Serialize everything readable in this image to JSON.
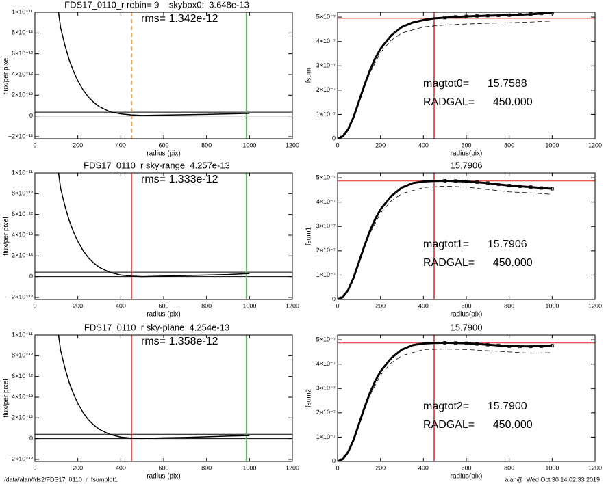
{
  "chart_data": [
    {
      "type": "line",
      "title": "FDS17_0110_r rebin= 9    skybox0:  3.648e-13",
      "xlabel": "radius (pix)",
      "ylabel": "flux/per pixel",
      "annotations": [
        "rms= 1.342e-12"
      ],
      "xlim": [
        0,
        1200
      ],
      "xticks": [
        0,
        200,
        400,
        600,
        800,
        1000,
        1200
      ],
      "ylim": [
        -2.2e-12,
        1e-11
      ],
      "yticks": [
        {
          "value": -2e-12,
          "label": "−2×10⁻¹²"
        },
        0,
        {
          "value": 2e-12,
          "label": "2×10⁻¹²"
        },
        {
          "value": 4e-12,
          "label": "4×10⁻¹²"
        },
        {
          "value": 6e-12,
          "label": "6×10⁻¹²"
        },
        {
          "value": 8e-12,
          "label": "8×10⁻¹²"
        },
        {
          "value": 1e-11,
          "label": "1×10⁻¹¹"
        }
      ],
      "series": [
        {
          "style": "solid",
          "color": "#000000",
          "x": [
            110,
            120,
            140,
            160,
            180,
            200,
            225,
            250,
            275,
            300,
            350,
            400,
            450,
            500,
            600,
            700,
            800,
            900,
            1000
          ],
          "values": [
            1e-11,
            8.5e-12,
            6.8e-12,
            5.4e-12,
            4.3e-12,
            3.4e-12,
            2.5e-12,
            1.8e-12,
            1.3e-12,
            9e-13,
            4e-13,
            2e-13,
            1e-13,
            5e-14,
            8e-14,
            1.2e-13,
            1.5e-13,
            2e-13,
            2.5e-13
          ]
        }
      ],
      "hlines": [
        {
          "value": 3.648e-13,
          "color": "#000000"
        },
        {
          "value": 0,
          "color": "#000000"
        }
      ],
      "vlines": [
        {
          "value": 450,
          "color": "#e8862a",
          "dash": true
        },
        {
          "value": 985,
          "color": "#33dd33"
        }
      ]
    },
    {
      "type": "line",
      "xlabel": "radius(pix)",
      "ylabel": "fsum",
      "annotations": [
        "magtot0=      15.7588",
        "RADGAL=      450.000"
      ],
      "xlim": [
        0,
        1200
      ],
      "xticks": [
        0,
        200,
        400,
        600,
        800,
        1000,
        1200
      ],
      "ylim": [
        0,
        5.2e-07
      ],
      "yticks": [
        0,
        {
          "value": 1e-07,
          "label": "1×10⁻⁷"
        },
        {
          "value": 2e-07,
          "label": "2×10⁻⁷"
        },
        {
          "value": 3e-07,
          "label": "3×10⁻⁷"
        },
        {
          "value": 4e-07,
          "label": "4×10⁻⁷"
        },
        {
          "value": 5e-07,
          "label": "5×10⁻⁷"
        }
      ],
      "series": [
        {
          "style": "solid",
          "color": "#000000",
          "x": [
            0,
            25,
            50,
            75,
            100,
            125,
            150,
            175,
            200,
            250,
            300,
            350,
            400,
            450,
            500,
            600,
            700,
            800,
            900,
            1000
          ],
          "values": [
            0,
            1e-08,
            4e-08,
            9e-08,
            1.55e-07,
            2.2e-07,
            2.8e-07,
            3.3e-07,
            3.7e-07,
            4.25e-07,
            4.6e-07,
            4.78e-07,
            4.88e-07,
            4.95e-07,
            4.98e-07,
            5.03e-07,
            5.06e-07,
            5.08e-07,
            5.12e-07,
            5.18e-07
          ]
        },
        {
          "style": "dashed",
          "color": "#000000",
          "x": [
            0,
            50,
            100,
            150,
            200,
            250,
            300,
            400,
            500,
            600,
            700,
            800,
            900,
            1000
          ],
          "values": [
            0,
            3.8e-08,
            1.5e-07,
            2.7e-07,
            3.55e-07,
            4.05e-07,
            4.35e-07,
            4.6e-07,
            4.68e-07,
            4.72e-07,
            4.75e-07,
            4.77e-07,
            4.8e-07,
            4.84e-07
          ]
        },
        {
          "style": "square",
          "color": "#000000",
          "x": [
            500,
            550,
            600,
            650,
            700,
            750,
            800,
            850,
            900,
            950,
            1000
          ],
          "values": [
            4.98e-07,
            5.01e-07,
            5.03e-07,
            5.05e-07,
            5.06e-07,
            5.07e-07,
            5.08e-07,
            5.1e-07,
            5.12e-07,
            5.15e-07,
            5.18e-07
          ]
        }
      ],
      "hlines": [
        {
          "value": 4.95e-07,
          "color": "#dd2222"
        }
      ],
      "vlines": [
        {
          "value": 450,
          "color": "#dd2222"
        }
      ]
    },
    {
      "type": "line",
      "title": "FDS17_0110_r sky-range  4.257e-13",
      "xlabel": "radius (pix)",
      "ylabel": "flux/per pixel",
      "annotations": [
        "rms= 1.333e-12"
      ],
      "xlim": [
        0,
        1200
      ],
      "xticks": [
        0,
        200,
        400,
        600,
        800,
        1000,
        1200
      ],
      "ylim": [
        -2.2e-12,
        1e-11
      ],
      "yticks": [
        {
          "value": -2e-12,
          "label": "−2×10⁻¹²"
        },
        0,
        {
          "value": 2e-12,
          "label": "2×10⁻¹²"
        },
        {
          "value": 4e-12,
          "label": "4×10⁻¹²"
        },
        {
          "value": 6e-12,
          "label": "6×10⁻¹²"
        },
        {
          "value": 8e-12,
          "label": "8×10⁻¹²"
        },
        {
          "value": 1e-11,
          "label": "1×10⁻¹¹"
        }
      ],
      "series": [
        {
          "style": "solid",
          "color": "#000000",
          "x": [
            110,
            120,
            140,
            160,
            180,
            200,
            225,
            250,
            275,
            300,
            350,
            400,
            450,
            500,
            600,
            700,
            800,
            900,
            1000
          ],
          "values": [
            1e-11,
            8.5e-12,
            6.8e-12,
            5.4e-12,
            4.3e-12,
            3.4e-12,
            2.5e-12,
            1.8e-12,
            1.3e-12,
            9e-13,
            4e-13,
            1.5e-13,
            5e-14,
            0,
            5e-14,
            1e-13,
            1.5e-13,
            2e-13,
            3e-13
          ]
        }
      ],
      "hlines": [
        {
          "value": 4.257e-13,
          "color": "#000000"
        },
        {
          "value": 0,
          "color": "#000000"
        }
      ],
      "vlines": [
        {
          "value": 450,
          "color": "#dd2222"
        },
        {
          "value": 985,
          "color": "#33dd33"
        }
      ]
    },
    {
      "type": "line",
      "title": "15.7906",
      "xlabel": "radius(pix)",
      "ylabel": "fsum1",
      "annotations": [
        "magtot1=      15.7906",
        "RADGAL=      450.000"
      ],
      "xlim": [
        0,
        1200
      ],
      "xticks": [
        0,
        200,
        400,
        600,
        800,
        1000,
        1200
      ],
      "ylim": [
        0,
        5.2e-07
      ],
      "yticks": [
        0,
        {
          "value": 1e-07,
          "label": "1×10⁻⁷"
        },
        {
          "value": 2e-07,
          "label": "2×10⁻⁷"
        },
        {
          "value": 3e-07,
          "label": "3×10⁻⁷"
        },
        {
          "value": 4e-07,
          "label": "4×10⁻⁷"
        },
        {
          "value": 5e-07,
          "label": "5×10⁻⁷"
        }
      ],
      "series": [
        {
          "style": "solid",
          "color": "#000000",
          "x": [
            0,
            25,
            50,
            75,
            100,
            125,
            150,
            175,
            200,
            250,
            300,
            350,
            400,
            450,
            500,
            600,
            700,
            800,
            900,
            1000
          ],
          "values": [
            0,
            1e-08,
            4e-08,
            9e-08,
            1.55e-07,
            2.2e-07,
            2.8e-07,
            3.3e-07,
            3.7e-07,
            4.25e-07,
            4.6e-07,
            4.78e-07,
            4.85e-07,
            4.87e-07,
            4.88e-07,
            4.85e-07,
            4.78e-07,
            4.68e-07,
            4.62e-07,
            4.55e-07
          ]
        },
        {
          "style": "dashed",
          "color": "#000000",
          "x": [
            0,
            50,
            100,
            150,
            200,
            250,
            300,
            400,
            500,
            600,
            700,
            800,
            900,
            1000
          ],
          "values": [
            0,
            3.8e-08,
            1.5e-07,
            2.7e-07,
            3.55e-07,
            4.05e-07,
            4.35e-07,
            4.6e-07,
            4.66e-07,
            4.62e-07,
            4.52e-07,
            4.42e-07,
            4.38e-07,
            4.32e-07
          ]
        },
        {
          "style": "square",
          "color": "#000000",
          "x": [
            500,
            550,
            600,
            650,
            700,
            750,
            800,
            850,
            900,
            950,
            1000
          ],
          "values": [
            4.88e-07,
            4.87e-07,
            4.85e-07,
            4.82e-07,
            4.78e-07,
            4.73e-07,
            4.68e-07,
            4.65e-07,
            4.62e-07,
            4.58e-07,
            4.55e-07
          ]
        }
      ],
      "hlines": [
        {
          "value": 4.87e-07,
          "color": "#dd2222"
        }
      ],
      "vlines": [
        {
          "value": 450,
          "color": "#dd2222"
        }
      ]
    },
    {
      "type": "line",
      "title": "FDS17_0110_r sky-plane  4.254e-13",
      "xlabel": "radius (pix)",
      "ylabel": "flux/per pixel",
      "annotations": [
        "rms= 1.358e-12"
      ],
      "xlim": [
        0,
        1200
      ],
      "xticks": [
        0,
        200,
        400,
        600,
        800,
        1000,
        1200
      ],
      "ylim": [
        -2.2e-12,
        1e-11
      ],
      "yticks": [
        {
          "value": -2e-12,
          "label": "−2×10⁻¹²"
        },
        0,
        {
          "value": 2e-12,
          "label": "2×10⁻¹²"
        },
        {
          "value": 4e-12,
          "label": "4×10⁻¹²"
        },
        {
          "value": 6e-12,
          "label": "6×10⁻¹²"
        },
        {
          "value": 8e-12,
          "label": "8×10⁻¹²"
        },
        {
          "value": 1e-11,
          "label": "1×10⁻¹¹"
        }
      ],
      "series": [
        {
          "style": "solid",
          "color": "#000000",
          "x": [
            110,
            120,
            140,
            160,
            180,
            200,
            225,
            250,
            275,
            300,
            350,
            400,
            450,
            500,
            600,
            700,
            800,
            900,
            1000
          ],
          "values": [
            1e-11,
            8.5e-12,
            6.8e-12,
            5.4e-12,
            4.3e-12,
            3.4e-12,
            2.5e-12,
            1.8e-12,
            1.3e-12,
            9e-13,
            4e-13,
            1.5e-13,
            5e-14,
            2e-14,
            8e-14,
            1.2e-13,
            1.8e-13,
            2.5e-13,
            3e-13
          ]
        }
      ],
      "hlines": [
        {
          "value": 4.254e-13,
          "color": "#000000"
        },
        {
          "value": 0,
          "color": "#000000"
        }
      ],
      "vlines": [
        {
          "value": 450,
          "color": "#dd2222"
        },
        {
          "value": 985,
          "color": "#33dd33"
        }
      ]
    },
    {
      "type": "line",
      "title": "15.7900",
      "xlabel": "radius(pix)",
      "ylabel": "fsum2",
      "annotations": [
        "magtot2=      15.7900",
        "RADGAL=      450.000"
      ],
      "xlim": [
        0,
        1200
      ],
      "xticks": [
        0,
        200,
        400,
        600,
        800,
        1000,
        1200
      ],
      "ylim": [
        0,
        5.2e-07
      ],
      "yticks": [
        0,
        {
          "value": 1e-07,
          "label": "1×10⁻⁷"
        },
        {
          "value": 2e-07,
          "label": "2×10⁻⁷"
        },
        {
          "value": 3e-07,
          "label": "3×10⁻⁷"
        },
        {
          "value": 4e-07,
          "label": "4×10⁻⁷"
        },
        {
          "value": 5e-07,
          "label": "5×10⁻⁷"
        }
      ],
      "series": [
        {
          "style": "solid",
          "color": "#000000",
          "x": [
            0,
            25,
            50,
            75,
            100,
            125,
            150,
            175,
            200,
            250,
            300,
            350,
            400,
            450,
            500,
            600,
            700,
            800,
            900,
            1000
          ],
          "values": [
            0,
            1e-08,
            4e-08,
            9e-08,
            1.55e-07,
            2.2e-07,
            2.8e-07,
            3.3e-07,
            3.7e-07,
            4.25e-07,
            4.6e-07,
            4.78e-07,
            4.85e-07,
            4.87e-07,
            4.88e-07,
            4.86e-07,
            4.8e-07,
            4.74e-07,
            4.73e-07,
            4.76e-07
          ]
        },
        {
          "style": "dashed",
          "color": "#000000",
          "x": [
            0,
            50,
            100,
            150,
            200,
            250,
            300,
            400,
            500,
            600,
            700,
            800,
            900,
            1000
          ],
          "values": [
            0,
            3.8e-08,
            1.5e-07,
            2.7e-07,
            3.55e-07,
            4.05e-07,
            4.35e-07,
            4.6e-07,
            4.62e-07,
            4.6e-07,
            4.55e-07,
            4.5e-07,
            4.45e-07,
            4.47e-07
          ]
        },
        {
          "style": "square",
          "color": "#000000",
          "x": [
            500,
            550,
            600,
            650,
            700,
            750,
            800,
            850,
            900,
            950,
            1000
          ],
          "values": [
            4.88e-07,
            4.87e-07,
            4.86e-07,
            4.83e-07,
            4.8e-07,
            4.77e-07,
            4.74e-07,
            4.73e-07,
            4.73e-07,
            4.74e-07,
            4.76e-07
          ]
        }
      ],
      "hlines": [
        {
          "value": 4.87e-07,
          "color": "#dd2222"
        }
      ],
      "vlines": [
        {
          "value": 450,
          "color": "#dd2222"
        }
      ]
    }
  ],
  "footer": {
    "left": "/data/alan/fds2/FDS17_0110_r_fsumplot1",
    "right": "alan@  Wed Oct 30 14:02:33 2019"
  }
}
